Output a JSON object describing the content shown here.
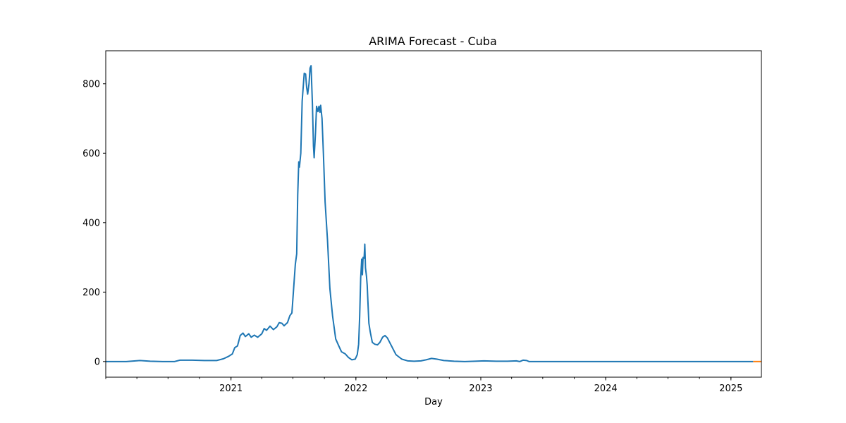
{
  "chart_data": {
    "type": "line",
    "title": "ARIMA Forecast - Cuba",
    "xlabel": "Day",
    "ylabel": "",
    "xlim": [
      "2020-01-01",
      "2025-03-31"
    ],
    "ylim": [
      -45,
      895
    ],
    "grid": false,
    "legend": "none",
    "x_ticks": [
      "2021",
      "2022",
      "2023",
      "2024",
      "2025"
    ],
    "y_ticks": [
      "0",
      "200",
      "400",
      "600",
      "800"
    ],
    "series": [
      {
        "role": "history",
        "color": "#1f77b4",
        "points": [
          [
            "2020-01-01",
            0
          ],
          [
            "2020-03-01",
            0
          ],
          [
            "2020-04-10",
            3
          ],
          [
            "2020-05-10",
            1
          ],
          [
            "2020-06-15",
            0
          ],
          [
            "2020-07-20",
            0
          ],
          [
            "2020-08-05",
            4
          ],
          [
            "2020-09-10",
            4
          ],
          [
            "2020-10-15",
            3
          ],
          [
            "2020-11-20",
            3
          ],
          [
            "2020-12-10",
            8
          ],
          [
            "2020-12-25",
            15
          ],
          [
            "2021-01-05",
            22
          ],
          [
            "2021-01-12",
            40
          ],
          [
            "2021-01-20",
            45
          ],
          [
            "2021-01-28",
            75
          ],
          [
            "2021-02-05",
            82
          ],
          [
            "2021-02-12",
            72
          ],
          [
            "2021-02-22",
            80
          ],
          [
            "2021-03-01",
            70
          ],
          [
            "2021-03-10",
            76
          ],
          [
            "2021-03-20",
            70
          ],
          [
            "2021-04-01",
            80
          ],
          [
            "2021-04-08",
            95
          ],
          [
            "2021-04-15",
            90
          ],
          [
            "2021-04-25",
            102
          ],
          [
            "2021-05-05",
            92
          ],
          [
            "2021-05-15",
            100
          ],
          [
            "2021-05-22",
            112
          ],
          [
            "2021-05-30",
            110
          ],
          [
            "2021-06-05",
            103
          ],
          [
            "2021-06-15",
            112
          ],
          [
            "2021-06-22",
            132
          ],
          [
            "2021-06-28",
            140
          ],
          [
            "2021-07-03",
            210
          ],
          [
            "2021-07-08",
            280
          ],
          [
            "2021-07-12",
            310
          ],
          [
            "2021-07-15",
            480
          ],
          [
            "2021-07-18",
            575
          ],
          [
            "2021-07-20",
            560
          ],
          [
            "2021-07-24",
            600
          ],
          [
            "2021-07-28",
            750
          ],
          [
            "2021-08-03",
            830
          ],
          [
            "2021-08-07",
            828
          ],
          [
            "2021-08-10",
            790
          ],
          [
            "2021-08-13",
            770
          ],
          [
            "2021-08-17",
            800
          ],
          [
            "2021-08-20",
            845
          ],
          [
            "2021-08-23",
            852
          ],
          [
            "2021-08-27",
            740
          ],
          [
            "2021-08-30",
            620
          ],
          [
            "2021-09-01",
            587
          ],
          [
            "2021-09-05",
            660
          ],
          [
            "2021-09-08",
            735
          ],
          [
            "2021-09-12",
            720
          ],
          [
            "2021-09-15",
            735
          ],
          [
            "2021-09-18",
            718
          ],
          [
            "2021-09-20",
            738
          ],
          [
            "2021-09-24",
            700
          ],
          [
            "2021-09-28",
            600
          ],
          [
            "2021-10-03",
            460
          ],
          [
            "2021-10-10",
            350
          ],
          [
            "2021-10-17",
            210
          ],
          [
            "2021-10-25",
            130
          ],
          [
            "2021-11-03",
            65
          ],
          [
            "2021-11-12",
            45
          ],
          [
            "2021-11-20",
            28
          ],
          [
            "2021-12-01",
            22
          ],
          [
            "2021-12-10",
            12
          ],
          [
            "2021-12-20",
            5
          ],
          [
            "2021-12-30",
            7
          ],
          [
            "2022-01-05",
            20
          ],
          [
            "2022-01-09",
            50
          ],
          [
            "2022-01-12",
            130
          ],
          [
            "2022-01-15",
            240
          ],
          [
            "2022-01-18",
            295
          ],
          [
            "2022-01-20",
            250
          ],
          [
            "2022-01-22",
            300
          ],
          [
            "2022-01-25",
            298
          ],
          [
            "2022-01-27",
            338
          ],
          [
            "2022-01-29",
            270
          ],
          [
            "2022-02-01",
            245
          ],
          [
            "2022-02-03",
            220
          ],
          [
            "2022-02-05",
            175
          ],
          [
            "2022-02-08",
            110
          ],
          [
            "2022-02-12",
            85
          ],
          [
            "2022-02-18",
            55
          ],
          [
            "2022-02-25",
            50
          ],
          [
            "2022-03-05",
            48
          ],
          [
            "2022-03-12",
            55
          ],
          [
            "2022-03-20",
            70
          ],
          [
            "2022-03-27",
            75
          ],
          [
            "2022-04-03",
            68
          ],
          [
            "2022-04-15",
            45
          ],
          [
            "2022-04-28",
            20
          ],
          [
            "2022-05-15",
            7
          ],
          [
            "2022-06-01",
            2
          ],
          [
            "2022-06-20",
            1
          ],
          [
            "2022-07-10",
            2
          ],
          [
            "2022-07-25",
            5
          ],
          [
            "2022-08-10",
            9
          ],
          [
            "2022-08-25",
            7
          ],
          [
            "2022-09-15",
            3
          ],
          [
            "2022-10-15",
            1
          ],
          [
            "2022-11-15",
            0
          ],
          [
            "2022-12-15",
            1
          ],
          [
            "2023-01-10",
            2
          ],
          [
            "2023-02-15",
            1
          ],
          [
            "2023-03-20",
            1
          ],
          [
            "2023-04-15",
            2
          ],
          [
            "2023-04-25",
            0
          ],
          [
            "2023-05-05",
            4
          ],
          [
            "2023-05-15",
            3
          ],
          [
            "2023-05-22",
            0
          ],
          [
            "2023-08-01",
            0
          ],
          [
            "2024-01-01",
            0
          ],
          [
            "2024-06-01",
            0
          ],
          [
            "2025-01-01",
            0
          ],
          [
            "2025-03-07",
            0
          ]
        ]
      },
      {
        "role": "forecast",
        "color": "#ff7f0e",
        "points": [
          [
            "2025-03-07",
            0
          ],
          [
            "2025-03-31",
            0
          ]
        ]
      }
    ]
  }
}
